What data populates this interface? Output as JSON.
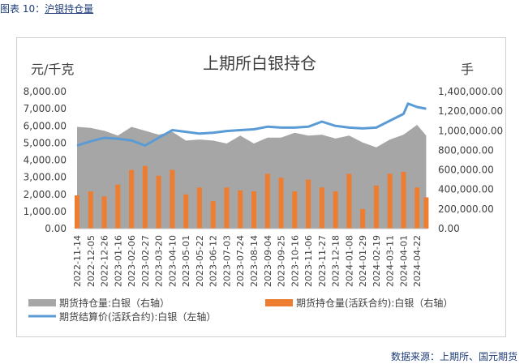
{
  "figure_label": "图表 10：",
  "figure_link": "沪银持仓量",
  "source_note": "数据来源：上期所、国元期货",
  "colors": {
    "total_oi": "#a6a6a6",
    "active_oi": "#ed7d31",
    "price": "#5b9bd5",
    "header": "#1f3d7a"
  },
  "chart_data": {
    "type": "area",
    "title": "上期所白银持仓",
    "left_unit": "元/千克",
    "right_unit": "手",
    "y_left": {
      "min": 0,
      "max": 8000,
      "ticks": [
        "0.00",
        "1,000.00",
        "2,000.00",
        "3,000.00",
        "4,000.00",
        "5,000.00",
        "6,000.00",
        "7,000.00",
        "8,000.00"
      ]
    },
    "y_right": {
      "min": 0,
      "max": 1400000,
      "ticks": [
        "0.00",
        "200,000.00",
        "400,000.00",
        "600,000.00",
        "800,000.00",
        "1,000,000.00",
        "1,200,000.00",
        "1,400,000.00"
      ]
    },
    "x_ticks": [
      "2022-11-14",
      "2022-12-05",
      "2022-12-26",
      "2023-01-16",
      "2023-02-06",
      "2023-02-27",
      "2023-03-20",
      "2023-04-10",
      "2023-05-01",
      "2023-05-22",
      "2023-06-12",
      "2023-07-03",
      "2023-07-24",
      "2023-08-14",
      "2023-09-04",
      "2023-09-25",
      "2023-10-16",
      "2023-11-06",
      "2023-11-27",
      "2023-12-18",
      "2024-01-08",
      "2024-01-29",
      "2024-02-19",
      "2024-03-11",
      "2024-04-01",
      "2024-04-22"
    ],
    "legend": [
      "期货持仓量:白银（右轴）",
      "期货持仓量(活跃合约):白银（右轴）",
      "期货结算价(活跃合约):白银（左轴）"
    ],
    "series": [
      {
        "name": "期货持仓量:白银（右轴）",
        "axis": "right",
        "style": "area",
        "x": [
          "2022-11-14",
          "2022-12-05",
          "2022-12-26",
          "2023-01-16",
          "2023-02-06",
          "2023-02-27",
          "2023-03-20",
          "2023-04-10",
          "2023-05-01",
          "2023-05-22",
          "2023-06-12",
          "2023-07-03",
          "2023-07-24",
          "2023-08-14",
          "2023-09-04",
          "2023-09-25",
          "2023-10-16",
          "2023-11-06",
          "2023-11-27",
          "2023-12-18",
          "2024-01-08",
          "2024-01-29",
          "2024-02-19",
          "2024-03-11",
          "2024-04-01",
          "2024-04-22",
          "2024-05-06"
        ],
        "values": [
          1040000,
          1030000,
          1000000,
          950000,
          1040000,
          1000000,
          960000,
          990000,
          900000,
          910000,
          900000,
          870000,
          950000,
          870000,
          930000,
          930000,
          980000,
          950000,
          960000,
          920000,
          950000,
          880000,
          830000,
          910000,
          960000,
          1060000,
          950000
        ]
      },
      {
        "name": "期货持仓量(活跃合约):白银（右轴）",
        "axis": "right",
        "style": "bar",
        "x": [
          "2022-11-14",
          "2022-12-05",
          "2022-12-26",
          "2023-01-16",
          "2023-02-06",
          "2023-02-27",
          "2023-03-20",
          "2023-04-10",
          "2023-05-01",
          "2023-05-22",
          "2023-06-12",
          "2023-07-03",
          "2023-07-24",
          "2023-08-14",
          "2023-09-04",
          "2023-09-25",
          "2023-10-16",
          "2023-11-06",
          "2023-11-27",
          "2023-12-18",
          "2024-01-08",
          "2024-01-29",
          "2024-02-19",
          "2024-03-11",
          "2024-04-01",
          "2024-04-22",
          "2024-05-06"
        ],
        "values": [
          340000,
          380000,
          330000,
          450000,
          600000,
          640000,
          540000,
          600000,
          350000,
          420000,
          280000,
          420000,
          390000,
          380000,
          560000,
          520000,
          380000,
          500000,
          420000,
          380000,
          560000,
          200000,
          440000,
          560000,
          580000,
          420000,
          320000
        ]
      },
      {
        "name": "期货结算价(活跃合约):白银（左轴）",
        "axis": "left",
        "style": "line",
        "x": [
          "2022-11-14",
          "2022-12-05",
          "2022-12-26",
          "2023-01-16",
          "2023-02-06",
          "2023-02-27",
          "2023-03-20",
          "2023-04-10",
          "2023-05-01",
          "2023-05-22",
          "2023-06-12",
          "2023-07-03",
          "2023-07-24",
          "2023-08-14",
          "2023-09-04",
          "2023-09-25",
          "2023-10-16",
          "2023-11-06",
          "2023-11-27",
          "2023-12-18",
          "2024-01-08",
          "2024-01-29",
          "2024-02-19",
          "2024-03-11",
          "2024-04-01",
          "2024-04-08",
          "2024-04-22",
          "2024-05-06"
        ],
        "values": [
          4850,
          5100,
          5300,
          5250,
          5150,
          4850,
          5300,
          5750,
          5650,
          5550,
          5600,
          5700,
          5750,
          5800,
          5950,
          5900,
          5900,
          5950,
          6250,
          6000,
          5900,
          5850,
          5900,
          6300,
          6700,
          7300,
          7100,
          7000
        ]
      }
    ]
  }
}
